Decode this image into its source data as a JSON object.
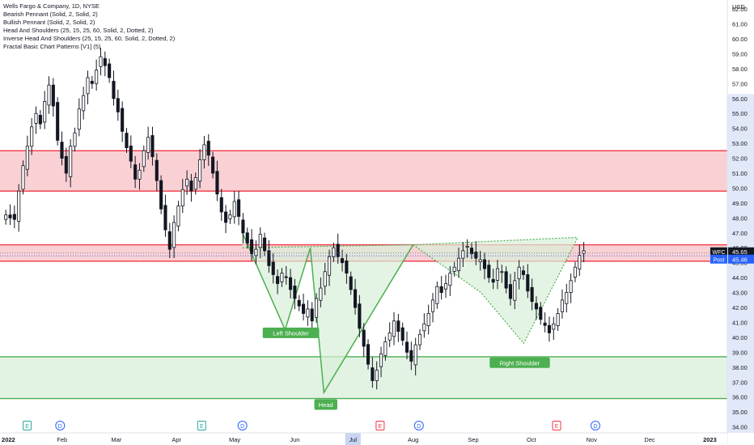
{
  "legend": {
    "title": "Wells Fargo & Company, 1D, NYSE",
    "indicators": [
      "Bearish Pennant (Solid, 2, Solid, 2)",
      "Bullish Pennant (Solid, 2, Solid, 2)",
      "Head And Shoulders (25, 15, 25, 60, Solid, 2, Dotted, 2)",
      "Inverse Head And Shoulders (25, 15, 25, 60, Solid, 2, Dotted, 2)",
      "Fractal Basic Chart Patterns [V1] (5)"
    ]
  },
  "colors": {
    "up": "#ffffff",
    "down": "#131722",
    "red_line": "#f23645",
    "red_fill": "#f7c1c6",
    "green_line": "#4caf50",
    "green_fill": "#d8efd9",
    "label_green": "#4caf50",
    "axis_highlight": "#c9d6f2",
    "price_tag": "#131722",
    "post_tag": "#2962ff"
  },
  "chart_data": {
    "type": "candlestick",
    "symbol": "WFC",
    "y_axis": {
      "unit": "USD",
      "range": [
        33.6,
        62.6
      ],
      "ticks": [
        "34.00",
        "35.00",
        "36.00",
        "37.00",
        "38.00",
        "39.00",
        "40.00",
        "41.00",
        "42.00",
        "43.00",
        "44.00",
        "45.00",
        "46.00",
        "47.00",
        "48.00",
        "49.00",
        "50.00",
        "51.00",
        "52.00",
        "53.00",
        "54.00",
        "55.00",
        "56.00",
        "57.00",
        "58.00",
        "59.00",
        "60.00",
        "61.00",
        "62.00"
      ]
    },
    "x_axis": {
      "labels": [
        "2022",
        "Feb",
        "Mar",
        "Apr",
        "May",
        "Jun",
        "Jul",
        "Aug",
        "Sep",
        "Oct",
        "Nov",
        "Dec",
        "2023"
      ],
      "dates": [
        "2022-01-01",
        "2022-02-01",
        "2022-03-01",
        "2022-04-01",
        "2022-05-01",
        "2022-06-01",
        "2022-07-01",
        "2022-08-01",
        "2022-09-01",
        "2022-10-01",
        "2022-11-01",
        "2022-12-01",
        "2023-01-01"
      ],
      "range": [
        "2021-12-31",
        "2023-01-10"
      ]
    },
    "current_price": {
      "label": "WFC",
      "value": "45.65"
    },
    "post_price": {
      "label": "Post",
      "value": "45.46"
    },
    "zones": [
      {
        "type": "resistance",
        "top": 52.5,
        "bottom": 49.8
      },
      {
        "type": "resistance",
        "top": 46.2,
        "bottom": 45.1
      },
      {
        "type": "support",
        "top": 38.7,
        "bottom": 35.9
      }
    ],
    "pattern_labels": [
      {
        "text": "Left Shoulder",
        "date": "2022-05-30",
        "price": 40.3
      },
      {
        "text": "Head",
        "date": "2022-06-17",
        "price": 35.5
      },
      {
        "text": "Right Shoulder",
        "date": "2022-09-25",
        "price": 38.3
      }
    ],
    "patterns": [
      {
        "name": "inverse_head_and_shoulders_1",
        "style": "solid",
        "points": [
          [
            "2022-05-05",
            47.0
          ],
          [
            "2022-05-27",
            40.5
          ],
          [
            "2022-06-09",
            46.0
          ],
          [
            "2022-06-16",
            36.3
          ],
          [
            "2022-08-01",
            46.2
          ]
        ]
      },
      {
        "name": "inverse_head_and_shoulders_1_neckline",
        "style": "dotted",
        "points": [
          [
            "2022-05-05",
            46.0
          ],
          [
            "2022-08-01",
            46.2
          ]
        ]
      },
      {
        "name": "inverse_head_and_shoulders_2",
        "style": "dotted",
        "points": [
          [
            "2022-08-01",
            46.2
          ],
          [
            "2022-09-05",
            43.0
          ],
          [
            "2022-09-27",
            39.6
          ],
          [
            "2022-10-25",
            46.7
          ]
        ]
      },
      {
        "name": "inverse_head_and_shoulders_2_neckline",
        "style": "dotted",
        "points": [
          [
            "2022-08-01",
            46.2
          ],
          [
            "2022-10-25",
            46.7
          ]
        ]
      }
    ],
    "event_markers": [
      {
        "letter": "E",
        "date": "2022-01-14",
        "color": "#26a69a"
      },
      {
        "letter": "D",
        "date": "2022-01-31",
        "color": "#2962ff"
      },
      {
        "letter": "E",
        "date": "2022-04-14",
        "color": "#26a69a"
      },
      {
        "letter": "D",
        "date": "2022-05-05",
        "color": "#2962ff"
      },
      {
        "letter": "E",
        "date": "2022-07-15",
        "color": "#f23645"
      },
      {
        "letter": "D",
        "date": "2022-08-04",
        "color": "#2962ff"
      },
      {
        "letter": "E",
        "date": "2022-10-14",
        "color": "#f23645"
      },
      {
        "letter": "D",
        "date": "2022-11-03",
        "color": "#2962ff"
      }
    ],
    "closes": [
      48.2,
      48.0,
      47.9,
      49.8,
      51.5,
      52.8,
      54.1,
      55.0,
      54.3,
      55.8,
      56.9,
      55.5,
      53.2,
      52.0,
      51.0,
      52.8,
      53.7,
      55.3,
      56.2,
      57.4,
      57.0,
      57.9,
      58.8,
      58.2,
      57.4,
      56.0,
      55.1,
      53.8,
      52.7,
      51.8,
      50.6,
      51.2,
      52.5,
      53.4,
      52.1,
      50.5,
      48.6,
      47.2,
      45.9,
      47.7,
      48.8,
      49.9,
      50.6,
      49.8,
      50.7,
      51.9,
      52.9,
      52.2,
      51.0,
      49.6,
      48.4,
      47.7,
      48.2,
      49.1,
      48.1,
      47.0,
      46.3,
      45.6,
      45.9,
      46.9,
      45.8,
      44.8,
      44.2,
      43.6,
      44.3,
      44.0,
      43.2,
      42.6,
      42.1,
      41.6,
      41.9,
      41.1,
      42.6,
      43.3,
      44.4,
      45.4,
      46.0,
      45.4,
      45.0,
      44.3,
      43.2,
      42.0,
      40.6,
      39.4,
      38.2,
      37.1,
      37.8,
      38.9,
      39.7,
      40.3,
      41.1,
      40.4,
      39.8,
      39.0,
      38.4,
      39.5,
      40.2,
      40.9,
      41.6,
      42.5,
      43.4,
      43.0,
      43.6,
      44.3,
      44.7,
      45.3,
      45.8,
      46.1,
      45.6,
      45.3,
      45.2,
      44.6,
      44.0,
      43.7,
      44.6,
      44.4,
      43.3,
      42.6,
      43.8,
      44.7,
      44.2,
      43.1,
      42.4,
      41.9,
      41.2,
      40.8,
      40.3,
      40.9,
      41.6,
      42.5,
      43.0,
      43.8,
      44.7,
      45.5,
      45.8
    ]
  }
}
